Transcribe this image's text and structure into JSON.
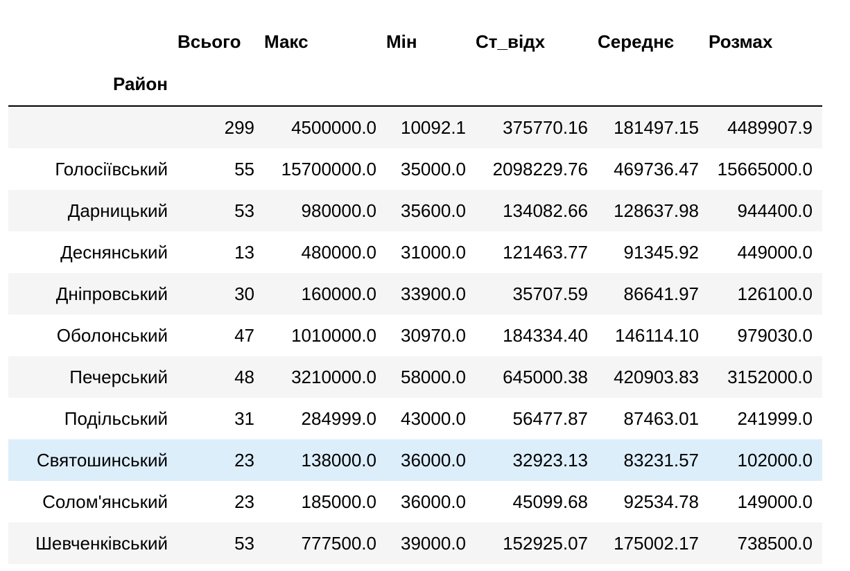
{
  "table": {
    "index_name": "Район",
    "columns": [
      "Всього",
      "Макс",
      "Мін",
      "Ст_відх",
      "Середнє",
      "Розмах"
    ],
    "rows": [
      {
        "index": "",
        "values": [
          "299",
          "4500000.0",
          "10092.1",
          "375770.16",
          "181497.15",
          "4489907.9"
        ]
      },
      {
        "index": "Голосіївський",
        "values": [
          "55",
          "15700000.0",
          "35000.0",
          "2098229.76",
          "469736.47",
          "15665000.0"
        ]
      },
      {
        "index": "Дарницький",
        "values": [
          "53",
          "980000.0",
          "35600.0",
          "134082.66",
          "128637.98",
          "944400.0"
        ]
      },
      {
        "index": "Деснянський",
        "values": [
          "13",
          "480000.0",
          "31000.0",
          "121463.77",
          "91345.92",
          "449000.0"
        ]
      },
      {
        "index": "Дніпровський",
        "values": [
          "30",
          "160000.0",
          "33900.0",
          "35707.59",
          "86641.97",
          "126100.0"
        ]
      },
      {
        "index": "Оболонський",
        "values": [
          "47",
          "1010000.0",
          "30970.0",
          "184334.40",
          "146114.10",
          "979030.0"
        ]
      },
      {
        "index": "Печерський",
        "values": [
          "48",
          "3210000.0",
          "58000.0",
          "645000.38",
          "420903.83",
          "3152000.0"
        ]
      },
      {
        "index": "Подільський",
        "values": [
          "31",
          "284999.0",
          "43000.0",
          "56477.87",
          "87463.01",
          "241999.0"
        ]
      },
      {
        "index": "Святошинський",
        "values": [
          "23",
          "138000.0",
          "36000.0",
          "32923.13",
          "83231.57",
          "102000.0"
        ]
      },
      {
        "index": "Солом'янський",
        "values": [
          "23",
          "185000.0",
          "36000.0",
          "45099.68",
          "92534.78",
          "149000.0"
        ]
      },
      {
        "index": "Шевченківський",
        "values": [
          "53",
          "777500.0",
          "39000.0",
          "152925.07",
          "175002.17",
          "738500.0"
        ]
      }
    ],
    "hovered_row": 8
  }
}
